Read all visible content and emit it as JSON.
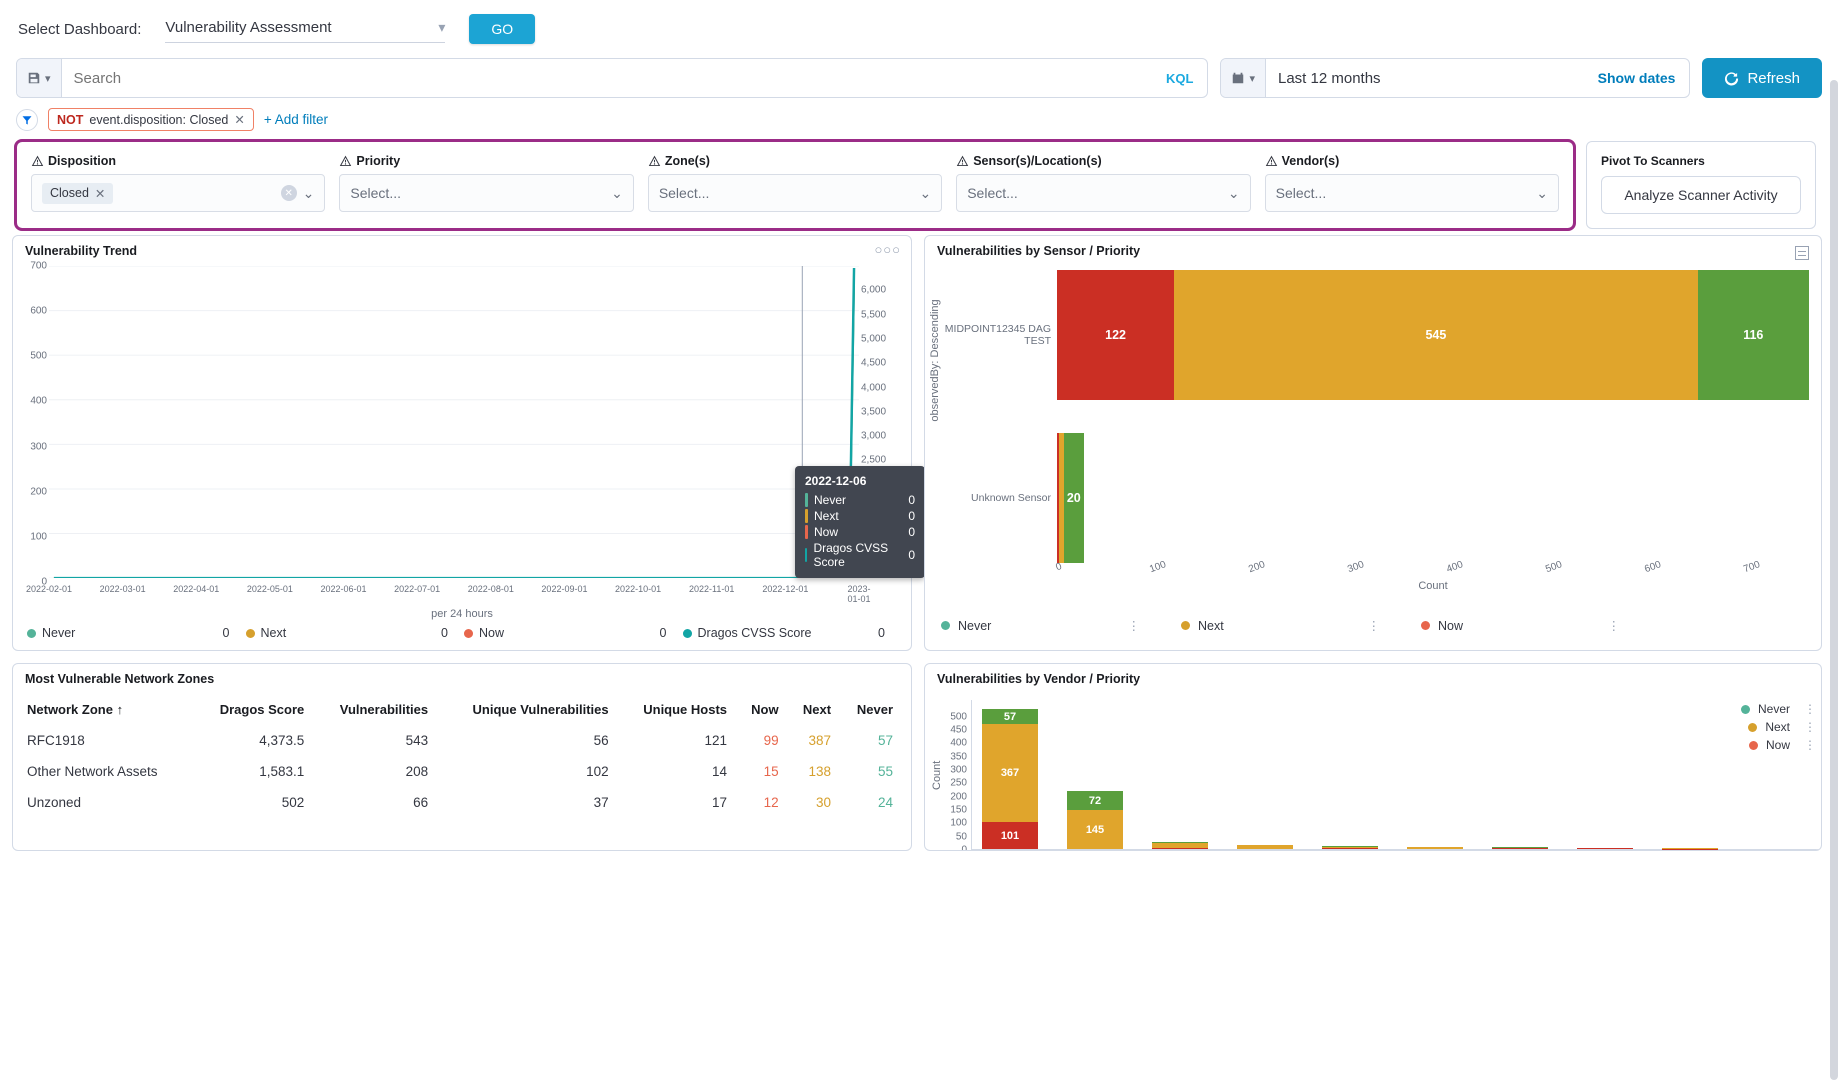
{
  "colors": {
    "never": "#54b399",
    "next": "#d6a02d",
    "now": "#e7664c",
    "nowDark": "#cb2f24",
    "cvss": "#12a5a5",
    "accent": "#1ca4d4",
    "link": "#007dbb",
    "panelBorder": "#d3dae6",
    "highlight": "#9b2c87"
  },
  "topbar": {
    "selectLabel": "Select Dashboard:",
    "selected": "Vulnerability Assessment",
    "go": "GO"
  },
  "query": {
    "placeholder": "Search",
    "kql": "KQL",
    "dateRange": "Last 12 months",
    "showDates": "Show dates",
    "refresh": "Refresh"
  },
  "filters": {
    "not": "NOT",
    "chipText": "event.disposition: Closed",
    "addFilter": "+ Add filter"
  },
  "controls": [
    {
      "label": "Disposition",
      "value": "Closed",
      "hasTag": true
    },
    {
      "label": "Priority",
      "placeholder": "Select..."
    },
    {
      "label": "Zone(s)",
      "placeholder": "Select..."
    },
    {
      "label": "Sensor(s)/Location(s)",
      "placeholder": "Select..."
    },
    {
      "label": "Vendor(s)",
      "placeholder": "Select..."
    }
  ],
  "pivot": {
    "title": "Pivot To Scanners",
    "button": "Analyze Scanner Activity"
  },
  "trend": {
    "title": "Vulnerability Trend",
    "yTicks": [
      0,
      100,
      200,
      300,
      400,
      500,
      600,
      700
    ],
    "y2Ticks": [
      500,
      1000,
      1500,
      2000,
      2500,
      3000,
      3500,
      4000,
      4500,
      5000,
      5500,
      6000
    ],
    "xTicks": [
      "2022-02-01",
      "2022-03-01",
      "2022-04-01",
      "2022-05-01",
      "2022-06-01",
      "2022-07-01",
      "2022-08-01",
      "2022-09-01",
      "2022-10-01",
      "2022-11-01",
      "2022-12-01",
      "2023-01-01"
    ],
    "xTitle": "per 24 hours",
    "legend": [
      {
        "name": "Never",
        "color": "#54b399",
        "value": "0"
      },
      {
        "name": "Next",
        "color": "#d6a02d",
        "value": "0"
      },
      {
        "name": "Now",
        "color": "#e7664c",
        "value": "0"
      },
      {
        "name": "Dragos CVSS Score",
        "color": "#12a5a5",
        "value": "0"
      }
    ],
    "tooltip": {
      "date": "2022-12-06",
      "rows": [
        {
          "name": "Never",
          "color": "#54b399",
          "value": "0"
        },
        {
          "name": "Next",
          "color": "#d6a02d",
          "value": "0"
        },
        {
          "name": "Now",
          "color": "#e7664c",
          "value": "0"
        },
        {
          "name": "Dragos CVSS Score",
          "color": "#12a5a5",
          "value": "0"
        }
      ]
    }
  },
  "sensor": {
    "title": "Vulnerabilities by Sensor / Priority",
    "yTitle": "observedBy: Descending",
    "xTitle": "Count",
    "xTicks": [
      0,
      100,
      200,
      300,
      400,
      500,
      600,
      700
    ],
    "rows": [
      {
        "label": "MIDPOINT12345 DAG TEST",
        "segments": [
          {
            "v": 122,
            "color": "#cb2f24"
          },
          {
            "v": 545,
            "color": "#e0a52c"
          },
          {
            "v": 116,
            "color": "#5a9e3d"
          }
        ],
        "total": 783
      },
      {
        "label": "Unknown Sensor",
        "segments": [
          {
            "v": 2,
            "color": "#cb2f24"
          },
          {
            "v": 5,
            "color": "#e0a52c"
          },
          {
            "v": 20,
            "color": "#5a9e3d"
          }
        ],
        "total": 27
      }
    ],
    "legend": [
      "Never",
      "Next",
      "Now"
    ]
  },
  "zones": {
    "title": "Most Vulnerable Network Zones",
    "columns": [
      "Network Zone",
      "Dragos Score",
      "Vulnerabilities",
      "Unique Vulnerabilities",
      "Unique Hosts",
      "Now",
      "Next",
      "Never"
    ],
    "sortArrow": "↑",
    "rows": [
      {
        "zone": "RFC1918",
        "score": "4,373.5",
        "vulns": "543",
        "uniq": "56",
        "hosts": "121",
        "now": "99",
        "next": "387",
        "never": "57"
      },
      {
        "zone": "Other Network Assets",
        "score": "1,583.1",
        "vulns": "208",
        "uniq": "102",
        "hosts": "14",
        "now": "15",
        "next": "138",
        "never": "55"
      },
      {
        "zone": "Unzoned",
        "score": "502",
        "vulns": "66",
        "uniq": "37",
        "hosts": "17",
        "now": "12",
        "next": "30",
        "never": "24"
      }
    ]
  },
  "vendor": {
    "title": "Vulnerabilities by Vendor / Priority",
    "yTitle": "Count",
    "yTicks": [
      0,
      50,
      100,
      150,
      200,
      250,
      300,
      350,
      400,
      450,
      500
    ],
    "bars": [
      {
        "x": 10,
        "segments": [
          {
            "v": 101,
            "color": "#cb2f24"
          },
          {
            "v": 367,
            "color": "#e0a52c"
          },
          {
            "v": 57,
            "color": "#5a9e3d"
          }
        ],
        "labels": [
          "101",
          "367",
          "57"
        ]
      },
      {
        "x": 95,
        "segments": [
          {
            "v": 0,
            "color": "#cb2f24"
          },
          {
            "v": 145,
            "color": "#e0a52c"
          },
          {
            "v": 72,
            "color": "#5a9e3d"
          }
        ],
        "labels": [
          "",
          "145",
          "72"
        ]
      },
      {
        "x": 180,
        "segments": [
          {
            "v": 3,
            "color": "#cb2f24"
          },
          {
            "v": 20,
            "color": "#e0a52c"
          },
          {
            "v": 2,
            "color": "#5a9e3d"
          }
        ],
        "labels": [
          "",
          "",
          ""
        ]
      },
      {
        "x": 265,
        "segments": [
          {
            "v": 0,
            "color": "#cb2f24"
          },
          {
            "v": 14,
            "color": "#e0a52c"
          },
          {
            "v": 2,
            "color": "#5a9e3d"
          }
        ],
        "labels": [
          "",
          "",
          ""
        ]
      },
      {
        "x": 350,
        "segments": [
          {
            "v": 5,
            "color": "#cb2f24"
          },
          {
            "v": 4,
            "color": "#e0a52c"
          },
          {
            "v": 2,
            "color": "#5a9e3d"
          }
        ],
        "labels": [
          "",
          "",
          ""
        ]
      },
      {
        "x": 435,
        "segments": [
          {
            "v": 0,
            "color": "#cb2f24"
          },
          {
            "v": 8,
            "color": "#e0a52c"
          },
          {
            "v": 0,
            "color": "#5a9e3d"
          }
        ],
        "labels": [
          "",
          "",
          ""
        ]
      },
      {
        "x": 520,
        "segments": [
          {
            "v": 2,
            "color": "#cb2f24"
          },
          {
            "v": 3,
            "color": "#e0a52c"
          },
          {
            "v": 1,
            "color": "#5a9e3d"
          }
        ],
        "labels": [
          "",
          "",
          ""
        ]
      },
      {
        "x": 605,
        "segments": [
          {
            "v": 2,
            "color": "#cb2f24"
          },
          {
            "v": 2,
            "color": "#e0a52c"
          },
          {
            "v": 1,
            "color": "#5a9e3d"
          }
        ],
        "labels": [
          "",
          "",
          ""
        ]
      },
      {
        "x": 690,
        "segments": [
          {
            "v": 1,
            "color": "#cb2f24"
          },
          {
            "v": 2,
            "color": "#e0a52c"
          },
          {
            "v": 1,
            "color": "#5a9e3d"
          }
        ],
        "labels": [
          "",
          "",
          ""
        ]
      }
    ],
    "legend": [
      {
        "name": "Never",
        "color": "#54b399"
      },
      {
        "name": "Next",
        "color": "#d6a02d"
      },
      {
        "name": "Now",
        "color": "#e7664c"
      }
    ]
  }
}
